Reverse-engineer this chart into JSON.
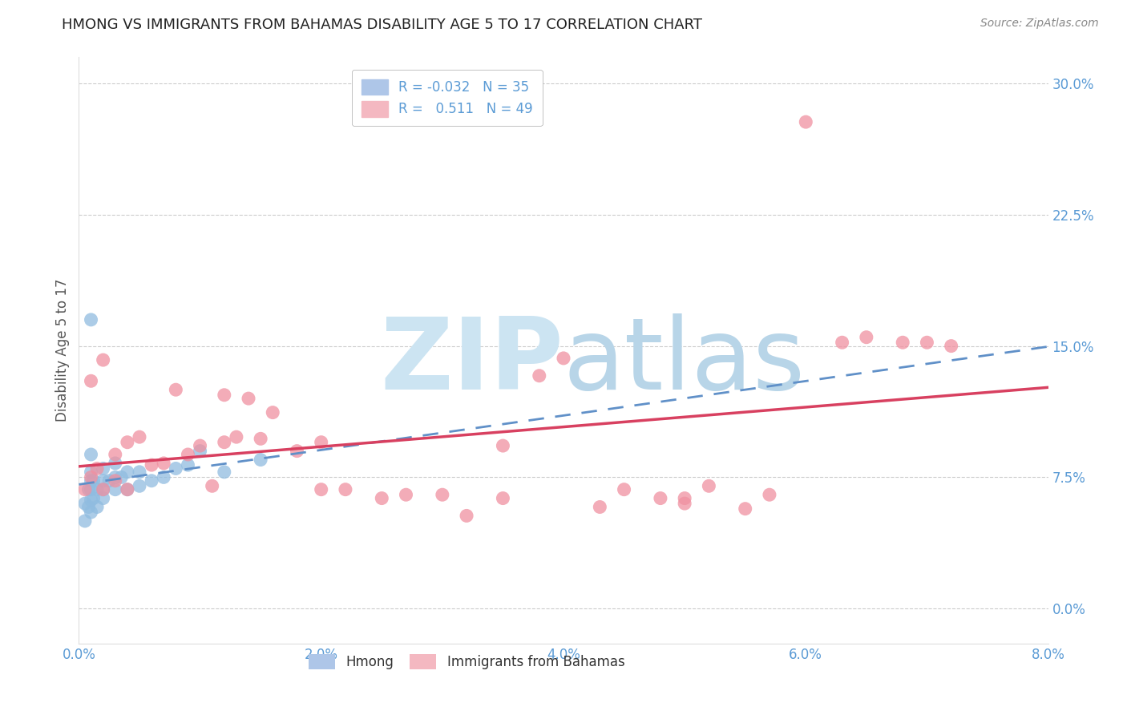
{
  "title": "HMONG VS IMMIGRANTS FROM BAHAMAS DISABILITY AGE 5 TO 17 CORRELATION CHART",
  "source": "Source: ZipAtlas.com",
  "ylabel": "Disability Age 5 to 17",
  "xlim": [
    0.0,
    0.08
  ],
  "ylim": [
    -0.02,
    0.315
  ],
  "yticks": [
    0.0,
    0.075,
    0.15,
    0.225,
    0.3
  ],
  "ytick_labels": [
    "0.0%",
    "7.5%",
    "15.0%",
    "22.5%",
    "30.0%"
  ],
  "xticks": [
    0.0,
    0.02,
    0.04,
    0.06,
    0.08
  ],
  "xtick_labels": [
    "0.0%",
    "2.0%",
    "4.0%",
    "6.0%",
    "8.0%"
  ],
  "tick_color": "#5b9bd5",
  "hmong_color": "#90bce0",
  "bahamas_color": "#f090a0",
  "hmong_trend_color": "#6090c8",
  "bahamas_trend_color": "#d84060",
  "hmong_x": [
    0.0005,
    0.0005,
    0.0008,
    0.0008,
    0.001,
    0.001,
    0.001,
    0.001,
    0.001,
    0.001,
    0.0012,
    0.0012,
    0.0015,
    0.0015,
    0.002,
    0.002,
    0.002,
    0.002,
    0.0025,
    0.003,
    0.003,
    0.003,
    0.0035,
    0.004,
    0.004,
    0.005,
    0.005,
    0.006,
    0.007,
    0.008,
    0.009,
    0.01,
    0.012,
    0.015,
    0.001
  ],
  "hmong_y": [
    0.06,
    0.05,
    0.058,
    0.068,
    0.055,
    0.062,
    0.068,
    0.073,
    0.078,
    0.088,
    0.063,
    0.073,
    0.058,
    0.068,
    0.063,
    0.068,
    0.073,
    0.08,
    0.073,
    0.068,
    0.075,
    0.083,
    0.075,
    0.068,
    0.078,
    0.07,
    0.078,
    0.073,
    0.075,
    0.08,
    0.082,
    0.09,
    0.078,
    0.085,
    0.165
  ],
  "bahamas_x": [
    0.0005,
    0.001,
    0.001,
    0.0015,
    0.002,
    0.002,
    0.003,
    0.003,
    0.004,
    0.004,
    0.005,
    0.006,
    0.007,
    0.008,
    0.009,
    0.01,
    0.011,
    0.012,
    0.013,
    0.014,
    0.015,
    0.016,
    0.018,
    0.02,
    0.022,
    0.025,
    0.027,
    0.03,
    0.032,
    0.035,
    0.038,
    0.04,
    0.043,
    0.045,
    0.048,
    0.05,
    0.052,
    0.055,
    0.057,
    0.06,
    0.063,
    0.065,
    0.068,
    0.07,
    0.072,
    0.012,
    0.02,
    0.035,
    0.05
  ],
  "bahamas_y": [
    0.068,
    0.13,
    0.075,
    0.08,
    0.068,
    0.142,
    0.073,
    0.088,
    0.068,
    0.095,
    0.098,
    0.082,
    0.083,
    0.125,
    0.088,
    0.093,
    0.07,
    0.122,
    0.098,
    0.12,
    0.097,
    0.112,
    0.09,
    0.068,
    0.068,
    0.063,
    0.065,
    0.065,
    0.053,
    0.063,
    0.133,
    0.143,
    0.058,
    0.068,
    0.063,
    0.063,
    0.07,
    0.057,
    0.065,
    0.278,
    0.152,
    0.155,
    0.152,
    0.152,
    0.15,
    0.095,
    0.095,
    0.093,
    0.06
  ]
}
